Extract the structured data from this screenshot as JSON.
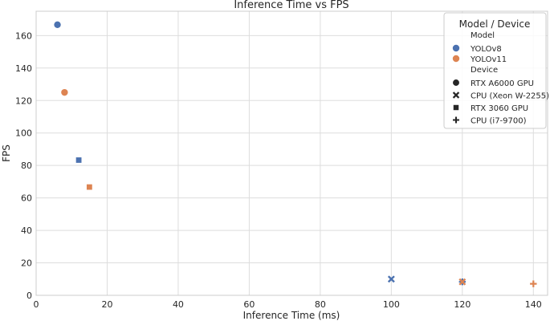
{
  "chart_data": {
    "type": "scatter",
    "title": "Inference Time vs FPS",
    "xlabel": "Inference Time (ms)",
    "ylabel": "FPS",
    "xlim": [
      0,
      144
    ],
    "ylim": [
      0,
      175
    ],
    "xticks": [
      0,
      20,
      40,
      60,
      80,
      100,
      120,
      140
    ],
    "yticks": [
      0,
      20,
      40,
      60,
      80,
      100,
      120,
      140,
      160
    ],
    "grid": true,
    "legend": {
      "title": "Model / Device",
      "placement": "top-right",
      "model_header": "Model",
      "device_header": "Device",
      "models": [
        {
          "name": "YOLOv8",
          "color": "#4C72B0"
        },
        {
          "name": "YOLOv11",
          "color": "#DD8452"
        }
      ],
      "devices": [
        {
          "name": "RTX A6000 GPU",
          "marker": "circle"
        },
        {
          "name": "CPU (Xeon W-2255)",
          "marker": "x"
        },
        {
          "name": "RTX 3060 GPU",
          "marker": "square"
        },
        {
          "name": "CPU (i7-9700)",
          "marker": "plus"
        }
      ]
    },
    "points": [
      {
        "model": "YOLOv8",
        "device": "RTX A6000 GPU",
        "x": 6,
        "y": 166.7
      },
      {
        "model": "YOLOv11",
        "device": "RTX A6000 GPU",
        "x": 8,
        "y": 125
      },
      {
        "model": "YOLOv8",
        "device": "RTX 3060 GPU",
        "x": 12,
        "y": 83.3
      },
      {
        "model": "YOLOv11",
        "device": "RTX 3060 GPU",
        "x": 15,
        "y": 66.7
      },
      {
        "model": "YOLOv8",
        "device": "CPU (Xeon W-2255)",
        "x": 100,
        "y": 10
      },
      {
        "model": "YOLOv8",
        "device": "CPU (i7-9700)",
        "x": 120,
        "y": 8.3
      },
      {
        "model": "YOLOv11",
        "device": "CPU (Xeon W-2255)",
        "x": 120,
        "y": 8.3
      },
      {
        "model": "YOLOv11",
        "device": "CPU (i7-9700)",
        "x": 140,
        "y": 7.1
      }
    ]
  }
}
